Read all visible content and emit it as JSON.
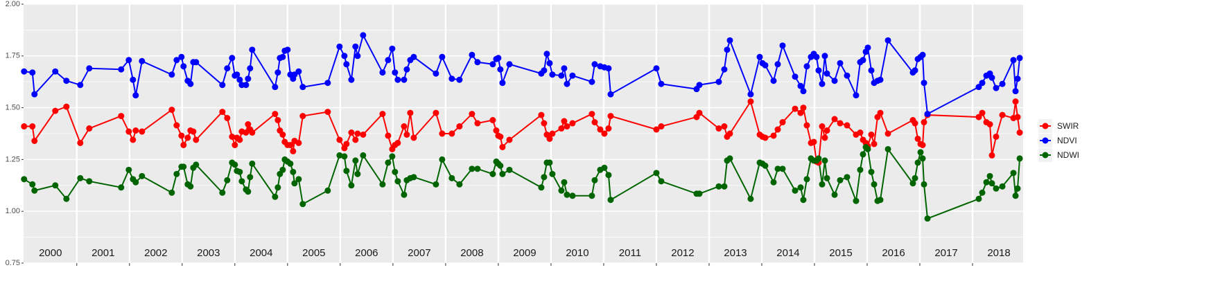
{
  "chart_data": {
    "type": "line",
    "x": [
      2000.0,
      2000.158,
      2000.197,
      2000.592,
      2000.803,
      2001.066,
      2001.237,
      2001.842,
      2001.987,
      2002.066,
      2002.118,
      2002.237,
      2002.803,
      2002.895,
      2002.987,
      2003.026,
      2003.105,
      2003.158,
      2003.211,
      2003.263,
      2003.763,
      2003.855,
      2003.947,
      2004.0,
      2004.039,
      2004.092,
      2004.132,
      2004.211,
      2004.25,
      2004.289,
      2004.329,
      2004.763,
      2004.816,
      2004.855,
      2004.908,
      2004.947,
      2005.0,
      2005.053,
      2005.105,
      2005.132,
      2005.211,
      2005.289,
      2005.763,
      2005.987,
      2006.079,
      2006.118,
      2006.211,
      2006.289,
      2006.329,
      2006.434,
      2006.803,
      2006.908,
      2006.987,
      2007.039,
      2007.092,
      2007.211,
      2007.263,
      2007.329,
      2007.395,
      2007.816,
      2007.934,
      2008.118,
      2008.263,
      2008.5,
      2008.605,
      2008.895,
      2008.961,
      2009.0,
      2009.039,
      2009.079,
      2009.211,
      2009.816,
      2009.868,
      2009.921,
      2009.974,
      2010.026,
      2010.197,
      2010.25,
      2010.303,
      2010.408,
      2010.776,
      2010.829,
      2010.934,
      2011.013,
      2011.092,
      2011.132,
      2012.0,
      2012.092,
      2012.763,
      2012.816,
      2013.184,
      2013.289,
      2013.342,
      2013.395,
      2013.789,
      2013.961,
      2014.013,
      2014.066,
      2014.224,
      2014.303,
      2014.395,
      2014.632,
      2014.737,
      2014.789,
      2014.855,
      2014.934,
      2014.987,
      2015.039,
      2015.079,
      2015.145,
      2015.197,
      2015.237,
      2015.382,
      2015.487,
      2015.618,
      2015.789,
      2015.868,
      2015.921,
      2015.974,
      2016.013,
      2016.079,
      2016.132,
      2016.197,
      2016.25,
      2016.395,
      2016.868,
      2016.908,
      2016.961,
      2017.013,
      2017.053,
      2017.079,
      2017.145,
      2018.118,
      2018.184,
      2018.263,
      2018.329,
      2018.368,
      2018.447,
      2018.566,
      2018.776,
      2018.816,
      2018.855,
      2018.895
    ],
    "series": [
      {
        "name": "SWIR",
        "color": "#ff0000",
        "values": [
          1.41,
          1.41,
          1.34,
          1.485,
          1.505,
          1.33,
          1.4,
          1.46,
          1.385,
          1.345,
          1.39,
          1.385,
          1.49,
          1.415,
          1.365,
          1.32,
          1.355,
          1.39,
          1.385,
          1.345,
          1.48,
          1.45,
          1.36,
          1.32,
          1.355,
          1.345,
          1.385,
          1.38,
          1.42,
          1.395,
          1.38,
          1.47,
          1.44,
          1.39,
          1.37,
          1.335,
          1.32,
          1.32,
          1.29,
          1.34,
          1.33,
          1.46,
          1.48,
          1.345,
          1.305,
          1.325,
          1.38,
          1.345,
          1.375,
          1.37,
          1.47,
          1.365,
          1.3,
          1.32,
          1.33,
          1.41,
          1.37,
          1.475,
          1.355,
          1.475,
          1.375,
          1.375,
          1.41,
          1.47,
          1.425,
          1.44,
          1.39,
          1.365,
          1.36,
          1.31,
          1.345,
          1.465,
          1.425,
          1.37,
          1.35,
          1.375,
          1.4,
          1.435,
          1.41,
          1.425,
          1.47,
          1.43,
          1.395,
          1.375,
          1.4,
          1.46,
          1.395,
          1.41,
          1.455,
          1.475,
          1.4,
          1.41,
          1.36,
          1.375,
          1.53,
          1.37,
          1.36,
          1.355,
          1.365,
          1.395,
          1.43,
          1.495,
          1.475,
          1.5,
          1.415,
          1.33,
          1.335,
          1.24,
          1.235,
          1.41,
          1.355,
          1.39,
          1.445,
          1.425,
          1.415,
          1.37,
          1.38,
          1.345,
          1.33,
          1.315,
          1.37,
          1.325,
          1.455,
          1.475,
          1.375,
          1.44,
          1.425,
          1.35,
          1.325,
          1.32,
          1.43,
          1.465,
          1.455,
          1.475,
          1.43,
          1.42,
          1.27,
          1.36,
          1.465,
          1.45,
          1.53,
          1.455,
          1.38
        ]
      },
      {
        "name": "NDVI",
        "color": "#0000ff",
        "values": [
          1.675,
          1.67,
          1.565,
          1.675,
          1.63,
          1.61,
          1.69,
          1.685,
          1.73,
          1.635,
          1.56,
          1.725,
          1.66,
          1.73,
          1.745,
          1.7,
          1.63,
          1.615,
          1.72,
          1.72,
          1.61,
          1.69,
          1.74,
          1.655,
          1.66,
          1.635,
          1.61,
          1.61,
          1.64,
          1.69,
          1.78,
          1.6,
          1.67,
          1.74,
          1.745,
          1.775,
          1.78,
          1.66,
          1.64,
          1.66,
          1.675,
          1.6,
          1.62,
          1.795,
          1.75,
          1.71,
          1.635,
          1.795,
          1.75,
          1.85,
          1.67,
          1.73,
          1.785,
          1.67,
          1.635,
          1.635,
          1.685,
          1.73,
          1.745,
          1.665,
          1.745,
          1.64,
          1.635,
          1.755,
          1.72,
          1.71,
          1.735,
          1.74,
          1.685,
          1.62,
          1.71,
          1.665,
          1.68,
          1.76,
          1.715,
          1.66,
          1.655,
          1.69,
          1.615,
          1.655,
          1.625,
          1.71,
          1.7,
          1.695,
          1.69,
          1.565,
          1.69,
          1.615,
          1.59,
          1.61,
          1.625,
          1.685,
          1.78,
          1.825,
          1.565,
          1.745,
          1.715,
          1.705,
          1.63,
          1.71,
          1.8,
          1.65,
          1.605,
          1.58,
          1.7,
          1.745,
          1.76,
          1.745,
          1.68,
          1.615,
          1.75,
          1.665,
          1.63,
          1.715,
          1.655,
          1.56,
          1.72,
          1.73,
          1.77,
          1.79,
          1.68,
          1.62,
          1.63,
          1.635,
          1.825,
          1.67,
          1.68,
          1.735,
          1.745,
          1.755,
          1.62,
          1.47,
          1.6,
          1.62,
          1.655,
          1.665,
          1.645,
          1.595,
          1.615,
          1.73,
          1.58,
          1.64,
          1.74
        ]
      },
      {
        "name": "NDWI",
        "color": "#006400",
        "values": [
          1.155,
          1.13,
          1.1,
          1.125,
          1.06,
          1.16,
          1.145,
          1.115,
          1.2,
          1.155,
          1.14,
          1.17,
          1.09,
          1.18,
          1.215,
          1.215,
          1.13,
          1.12,
          1.21,
          1.225,
          1.09,
          1.15,
          1.235,
          1.225,
          1.195,
          1.19,
          1.145,
          1.105,
          1.095,
          1.165,
          1.23,
          1.07,
          1.115,
          1.18,
          1.2,
          1.25,
          1.24,
          1.23,
          1.19,
          1.135,
          1.155,
          1.035,
          1.1,
          1.27,
          1.265,
          1.195,
          1.125,
          1.245,
          1.18,
          1.27,
          1.13,
          1.235,
          1.265,
          1.19,
          1.145,
          1.08,
          1.15,
          1.16,
          1.165,
          1.13,
          1.25,
          1.16,
          1.13,
          1.205,
          1.205,
          1.18,
          1.24,
          1.23,
          1.22,
          1.18,
          1.2,
          1.115,
          1.165,
          1.235,
          1.235,
          1.18,
          1.1,
          1.14,
          1.08,
          1.075,
          1.075,
          1.15,
          1.2,
          1.21,
          1.175,
          1.055,
          1.185,
          1.145,
          1.085,
          1.085,
          1.12,
          1.12,
          1.245,
          1.255,
          1.06,
          1.235,
          1.23,
          1.22,
          1.14,
          1.205,
          1.205,
          1.1,
          1.115,
          1.055,
          1.155,
          1.255,
          1.245,
          1.245,
          1.255,
          1.13,
          1.245,
          1.16,
          1.08,
          1.15,
          1.165,
          1.05,
          1.2,
          1.275,
          1.31,
          1.3,
          1.19,
          1.13,
          1.05,
          1.055,
          1.3,
          1.135,
          1.16,
          1.235,
          1.285,
          1.255,
          1.13,
          0.965,
          1.06,
          1.09,
          1.14,
          1.17,
          1.135,
          1.11,
          1.12,
          1.185,
          1.075,
          1.11,
          1.255
        ]
      }
    ],
    "year_labels": [
      "2000",
      "2001",
      "2002",
      "2003",
      "2004",
      "2005",
      "2006",
      "2007",
      "2008",
      "2009",
      "2010",
      "2011",
      "2012",
      "2013",
      "2014",
      "2015",
      "2016",
      "2017",
      "2018"
    ],
    "xlim": [
      1999.99,
      2018.96
    ],
    "xticks": [
      2001,
      2002,
      2003,
      2004,
      2005,
      2006,
      2007,
      2008,
      2009,
      2010,
      2011,
      2012,
      2013,
      2014,
      2015,
      2016,
      2017,
      2018
    ],
    "ylim": [
      0.75,
      2.0
    ],
    "yticks": [
      0.75,
      {
        "value": 1.0,
        "label": "1.00"
      },
      1.25,
      {
        "value": 1.5,
        "label": "1.50"
      },
      1.75,
      {
        "value": 2.0,
        "label": "2.00"
      }
    ],
    "grid": true,
    "legend": "right"
  }
}
